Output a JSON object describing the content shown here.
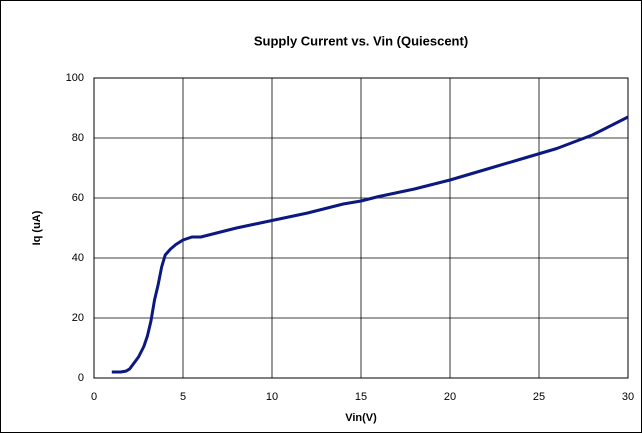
{
  "chart_data": {
    "type": "line",
    "title": "Supply Current vs. Vin (Quiescent)",
    "x_label": "Vin(V)",
    "y_label": "Iq (uA)",
    "x": [
      1,
      1.5,
      1.8,
      2,
      2.5,
      2.8,
      3,
      3.2,
      3.4,
      3.6,
      3.8,
      4,
      4.3,
      4.6,
      5,
      5.5,
      6,
      7,
      8,
      10,
      12,
      14,
      15,
      16,
      18,
      20,
      22,
      24,
      26,
      28,
      30
    ],
    "series": [
      {
        "name": "Iq",
        "color": "#0b1880",
        "values": [
          2,
          2,
          2.3,
          3,
          7,
          10.5,
          14,
          19,
          26,
          31,
          37,
          41,
          43,
          44.5,
          46,
          47,
          47,
          48.5,
          50,
          52.5,
          55,
          58,
          59,
          60.5,
          63,
          66,
          69.5,
          73,
          76.5,
          81,
          87
        ]
      }
    ],
    "xlim": [
      0,
      30
    ],
    "xticks": [
      0,
      5,
      10,
      15,
      20,
      25,
      30
    ],
    "ylim": [
      0,
      100
    ],
    "yticks": [
      0,
      20,
      40,
      60,
      80,
      100
    ],
    "grid": true
  }
}
